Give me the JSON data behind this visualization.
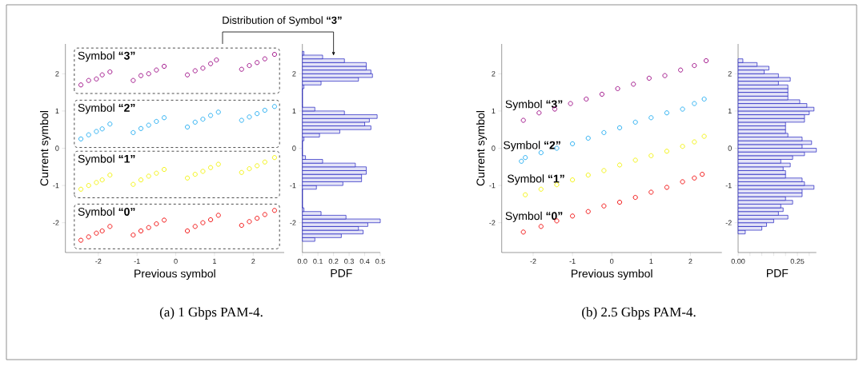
{
  "chart_data": [
    {
      "type": "scatter",
      "xlabel": "Previous symbol",
      "ylabel": "Current symbol",
      "xlim": [
        -2.85,
        2.8
      ],
      "ylim": [
        -2.8,
        2.8
      ],
      "xticks": [
        -2,
        -1,
        0,
        1,
        2
      ],
      "yticks": [
        -2,
        -1,
        0,
        1,
        2
      ],
      "marker": "circle",
      "annotations": [
        "(a) 1 Gbps PAM-4."
      ],
      "series": [
        {
          "name": "Symbol **“3”**",
          "color": "#990080",
          "x": [
            -2.45,
            -2.25,
            -2.05,
            -1.9,
            -1.7,
            -1.1,
            -0.9,
            -0.7,
            -0.5,
            -0.3,
            0.3,
            0.5,
            0.7,
            0.9,
            1.05,
            1.7,
            1.9,
            2.1,
            2.3,
            2.55
          ],
          "values": [
            1.7,
            1.82,
            1.86,
            1.97,
            2.05,
            1.82,
            1.95,
            2.0,
            2.1,
            2.2,
            1.97,
            2.08,
            2.15,
            2.27,
            2.37,
            2.12,
            2.22,
            2.3,
            2.4,
            2.52
          ]
        },
        {
          "name": "Symbol **“2”**",
          "color": "#1aa9f0",
          "x": [
            -2.45,
            -2.25,
            -2.05,
            -1.9,
            -1.7,
            -1.1,
            -0.9,
            -0.7,
            -0.5,
            -0.3,
            0.3,
            0.5,
            0.7,
            0.9,
            1.1,
            1.7,
            1.9,
            2.1,
            2.3,
            2.55
          ],
          "values": [
            0.25,
            0.36,
            0.45,
            0.52,
            0.65,
            0.42,
            0.53,
            0.62,
            0.72,
            0.82,
            0.57,
            0.7,
            0.78,
            0.88,
            0.97,
            0.75,
            0.84,
            0.93,
            1.02,
            1.12
          ]
        },
        {
          "name": "Symbol **“1”**",
          "color": "#f2f200",
          "x": [
            -2.45,
            -2.25,
            -2.05,
            -1.9,
            -1.7,
            -1.1,
            -0.9,
            -0.7,
            -0.5,
            -0.3,
            0.3,
            0.5,
            0.7,
            0.9,
            1.1,
            1.7,
            1.9,
            2.1,
            2.3,
            2.55
          ],
          "values": [
            -1.1,
            -1.0,
            -0.92,
            -0.85,
            -0.72,
            -0.97,
            -0.85,
            -0.75,
            -0.67,
            -0.57,
            -0.8,
            -0.7,
            -0.62,
            -0.52,
            -0.43,
            -0.65,
            -0.55,
            -0.47,
            -0.37,
            -0.25
          ]
        },
        {
          "name": "Symbol **“0”**",
          "color": "#f00000",
          "x": [
            -2.45,
            -2.25,
            -2.05,
            -1.9,
            -1.7,
            -1.1,
            -0.9,
            -0.7,
            -0.5,
            -0.3,
            0.3,
            0.5,
            0.7,
            0.9,
            1.1,
            1.7,
            1.9,
            2.1,
            2.3,
            2.55
          ],
          "values": [
            -2.47,
            -2.38,
            -2.28,
            -2.22,
            -2.1,
            -2.33,
            -2.22,
            -2.13,
            -2.03,
            -1.93,
            -2.22,
            -2.1,
            -2.0,
            -1.92,
            -1.8,
            -2.07,
            -1.97,
            -1.88,
            -1.78,
            -1.67
          ]
        }
      ]
    },
    {
      "type": "histogram",
      "orientation": "horizontal",
      "color": "#2020c0",
      "xlabel": "PDF",
      "xlim": [
        0,
        0.5
      ],
      "xticks": [
        {
          "value": 0,
          "label": "0.0"
        },
        0.1,
        0.2,
        0.3,
        0.4,
        0.5
      ],
      "ylim": [
        -2.8,
        2.8
      ],
      "yticks": [
        -2,
        -1,
        0,
        1,
        2
      ],
      "annotations": [
        "Distribution of Symbol **“3”**"
      ],
      "bins": [
        -2.5,
        -2.4,
        -2.3,
        -2.2,
        -2.1,
        -2.0,
        -1.9,
        -1.8,
        -1.7,
        -1.6,
        -1.5,
        -1.4,
        -1.3,
        -1.2,
        -1.1,
        -1.0,
        -0.9,
        -0.8,
        -0.7,
        -0.6,
        -0.5,
        -0.4,
        -0.3,
        -0.2,
        -0.1,
        0.0,
        0.1,
        0.2,
        0.3,
        0.4,
        0.5,
        0.6,
        0.7,
        0.8,
        0.9,
        1.0,
        1.1,
        1.2,
        1.3,
        1.4,
        1.5,
        1.6,
        1.7,
        1.8,
        1.9,
        2.0,
        2.1,
        2.2,
        2.3,
        2.4,
        2.5,
        2.6
      ],
      "values": [
        0.08,
        0.25,
        0.39,
        0.36,
        0.42,
        0.5,
        0.28,
        0.12,
        0.01,
        0,
        0,
        0,
        0,
        0,
        0.09,
        0.26,
        0.38,
        0.38,
        0.41,
        0.41,
        0.34,
        0.13,
        0.02,
        0,
        0,
        0,
        0,
        0.01,
        0.11,
        0.24,
        0.44,
        0.4,
        0.43,
        0.48,
        0.27,
        0.08,
        0,
        0,
        0,
        0,
        0,
        0.01,
        0.12,
        0.36,
        0.45,
        0.44,
        0.41,
        0.41,
        0.27,
        0.13,
        0.01
      ]
    },
    {
      "type": "scatter",
      "xlabel": "Previous symbol",
      "ylabel": "Current symbol",
      "xlim": [
        -2.8,
        2.8
      ],
      "ylim": [
        -2.8,
        2.8
      ],
      "xticks": [
        -2,
        -1,
        0,
        1,
        2
      ],
      "yticks": [
        -2,
        -1,
        0,
        1,
        2
      ],
      "marker": "circle",
      "annotations": [
        "(b) 2.5 Gbps PAM-4."
      ],
      "series": [
        {
          "name": "Symbol **“3”**",
          "color": "#990080",
          "x": [
            -2.25,
            -1.85,
            -1.45,
            -1.05,
            -0.65,
            -0.25,
            0.15,
            0.55,
            0.95,
            1.35,
            1.75,
            2.1,
            2.4
          ],
          "values": [
            0.75,
            0.95,
            1.05,
            1.2,
            1.32,
            1.45,
            1.6,
            1.72,
            1.88,
            1.95,
            2.1,
            2.22,
            2.35
          ]
        },
        {
          "name": "Symbol **“2”**",
          "color": "#1aa9f0",
          "x": [
            -2.3,
            -2.2,
            -1.8,
            -1.4,
            -1.0,
            -0.6,
            -0.2,
            0.2,
            0.6,
            1.0,
            1.4,
            1.8,
            2.1,
            2.35
          ],
          "values": [
            -0.35,
            -0.25,
            -0.12,
            0.0,
            0.12,
            0.27,
            0.42,
            0.55,
            0.7,
            0.82,
            0.95,
            1.05,
            1.2,
            1.32
          ]
        },
        {
          "name": "Symbol **“1”**",
          "color": "#f2f200",
          "x": [
            -2.2,
            -1.8,
            -1.4,
            -1.0,
            -0.6,
            -0.2,
            0.2,
            0.6,
            1.0,
            1.4,
            1.8,
            2.1,
            2.35
          ],
          "values": [
            -1.25,
            -1.1,
            -0.98,
            -0.85,
            -0.72,
            -0.6,
            -0.45,
            -0.32,
            -0.2,
            -0.08,
            0.05,
            0.17,
            0.32
          ]
        },
        {
          "name": "Symbol **“0”**",
          "color": "#f00000",
          "x": [
            -2.25,
            -1.8,
            -1.4,
            -1.0,
            -0.6,
            -0.2,
            0.2,
            0.6,
            1.0,
            1.4,
            1.8,
            2.1,
            2.3
          ],
          "values": [
            -2.25,
            -2.1,
            -1.95,
            -1.82,
            -1.7,
            -1.55,
            -1.45,
            -1.32,
            -1.18,
            -1.05,
            -0.9,
            -0.8,
            -0.7
          ]
        }
      ]
    },
    {
      "type": "histogram",
      "orientation": "horizontal",
      "color": "#2020c0",
      "xlabel": "PDF",
      "xlim": [
        0,
        0.33
      ],
      "xticks": [
        {
          "value": 0,
          "label": "0.00"
        },
        {
          "value": 0.05,
          "label": null
        },
        {
          "value": 0.1,
          "label": null
        },
        {
          "value": 0.15,
          "label": null
        },
        {
          "value": 0.2,
          "label": null
        },
        {
          "value": 0.25,
          "label": "0.25"
        },
        {
          "value": 0.3,
          "label": null
        }
      ],
      "ylim": [
        -2.8,
        2.8
      ],
      "yticks": [
        -2,
        -1,
        0,
        1,
        2
      ],
      "bins": [
        -2.3,
        -2.2,
        -2.1,
        -2.0,
        -1.9,
        -1.8,
        -1.7,
        -1.6,
        -1.5,
        -1.4,
        -1.3,
        -1.2,
        -1.1,
        -1.0,
        -0.9,
        -0.8,
        -0.7,
        -0.6,
        -0.5,
        -0.4,
        -0.3,
        -0.2,
        -0.1,
        0.0,
        0.1,
        0.2,
        0.3,
        0.4,
        0.5,
        0.6,
        0.7,
        0.8,
        0.9,
        1.0,
        1.1,
        1.2,
        1.3,
        1.4,
        1.5,
        1.6,
        1.7,
        1.8,
        1.9,
        2.0,
        2.1,
        2.2,
        2.3,
        2.4
      ],
      "values": [
        0.03,
        0.1,
        0.12,
        0.15,
        0.21,
        0.17,
        0.19,
        0.18,
        0.23,
        0.2,
        0.27,
        0.27,
        0.32,
        0.28,
        0.27,
        0.2,
        0.2,
        0.19,
        0.22,
        0.18,
        0.23,
        0.28,
        0.33,
        0.27,
        0.31,
        0.27,
        0.21,
        0.2,
        0.2,
        0.2,
        0.28,
        0.28,
        0.3,
        0.32,
        0.29,
        0.26,
        0.21,
        0.21,
        0.21,
        0.21,
        0.17,
        0.22,
        0.17,
        0.11,
        0.13,
        0.08,
        0.02
      ]
    }
  ]
}
